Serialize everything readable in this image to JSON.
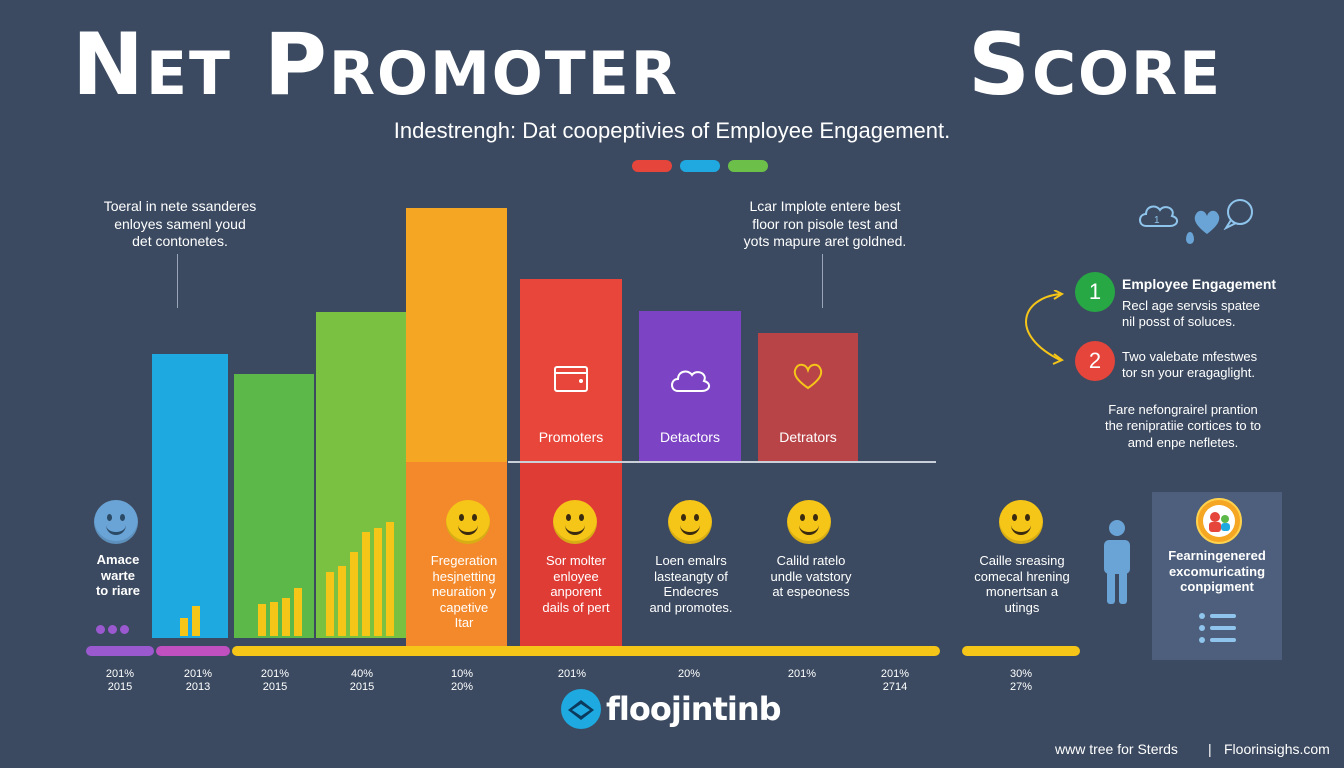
{
  "header": {
    "title_left": "Net Promoter",
    "title_right": "Score",
    "subtitle": "Indestrengh: Dat coopeptivies of Employee Engagement."
  },
  "accent_pills": [
    "#e5453a",
    "#1fa9e0",
    "#6cc04a"
  ],
  "notes": {
    "left": "Toeral in nete ssanderes\nenloyes samenl youd\ndet contonetes.",
    "right": "Lcar Implote entere best\nfloor ron pisole test and\nyots mapure aret goldned."
  },
  "bars": [
    {
      "color": "#1ea9e1",
      "label": "",
      "icon": ""
    },
    {
      "color": "#5cb848",
      "label": "",
      "icon": ""
    },
    {
      "color": "#7ac142",
      "label": "",
      "icon": ""
    },
    {
      "color": "#f5a623",
      "label": "",
      "icon": ""
    },
    {
      "color": "#e8463a",
      "label": "Promoters",
      "icon": "browser-window-icon"
    },
    {
      "color": "#7c44c4",
      "label": "Detactors",
      "icon": "cloud-icon"
    },
    {
      "color": "#b84448",
      "label": "Detrators",
      "icon": "heart-icon"
    }
  ],
  "captions": [
    "Amace\nwarte\nto riare",
    "Fregeration\nhesjnetting\nneuration y\ncapetive\nItar",
    "Sor molter\nenloyee\nanporent\ndails of pert",
    "Loen emalrs\nlasteangty of\nEndecres\nand promotes.",
    "Calild ratelo\nundle vatstory\nat espeoness",
    "Caille sreasing\ncomecal hrening\nmonertsan a\nutings"
  ],
  "years": [
    "201%\n2015",
    "201%\n2013",
    "201%\n2015",
    "40%\n2015",
    "10%\n20%",
    "201%",
    "20%",
    "201%",
    "201%\n2714",
    "30%\n27%"
  ],
  "side": {
    "icons": [
      "cloud-icon",
      "heart-icon",
      "chat-bubble-icon"
    ],
    "item1": {
      "num": "1",
      "title": "Employee Engagement",
      "text": "Recl age servsis spatee\nnil posst of soluces."
    },
    "item2": {
      "num": "2",
      "text": "Two valebate mfestwes\ntor sn your eragaglight."
    },
    "note": "Fare nefongrairel prantion\nthe renipratiie cortices to to\namd enpe nefletes.",
    "card_title": "Fearningenered\nexcomuricating\nconpigment"
  },
  "logo": {
    "text": "floojintinb"
  },
  "footer": {
    "left": "www tree for Sterds",
    "separator": "|",
    "right": "Floorinsighs.com"
  }
}
